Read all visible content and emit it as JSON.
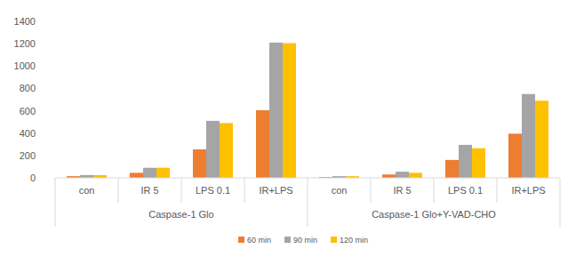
{
  "chart_data": {
    "type": "bar",
    "categories": [
      "con",
      "IR 5",
      "LPS 0.1",
      "IR+LPS",
      "con",
      "IR 5",
      "LPS 0.1",
      "IR+LPS"
    ],
    "group_labels": [
      "Caspase-1 Glo",
      "Caspase-1 Glo+Y-VAD-CHO"
    ],
    "series": [
      {
        "name": "60 min",
        "color": "#ed7d31",
        "values": [
          15,
          45,
          255,
          605,
          8,
          30,
          160,
          395
        ]
      },
      {
        "name": "90 min",
        "color": "#a5a5a5",
        "values": [
          25,
          90,
          510,
          1210,
          15,
          55,
          295,
          750
        ]
      },
      {
        "name": "120 min",
        "color": "#ffc000",
        "values": [
          25,
          90,
          490,
          1205,
          15,
          45,
          265,
          690
        ]
      }
    ],
    "ylim": [
      0,
      1400
    ],
    "yticks": [
      0,
      200,
      400,
      600,
      800,
      1000,
      1200,
      1400
    ],
    "grid": false,
    "legend": "bottom"
  }
}
